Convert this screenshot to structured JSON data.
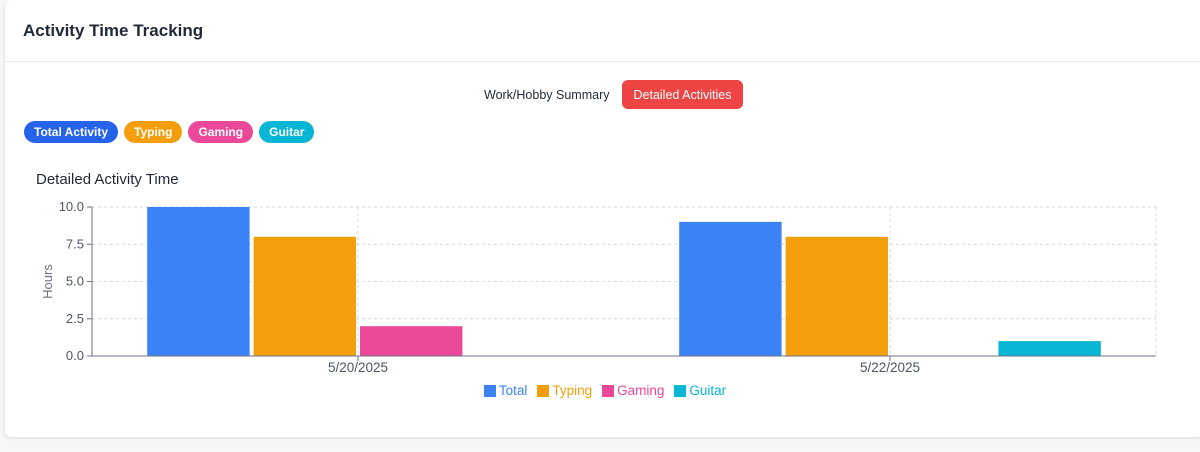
{
  "header": {
    "title": "Activity Time Tracking"
  },
  "toggle": {
    "summary_label": "Work/Hobby Summary",
    "detailed_label": "Detailed Activities"
  },
  "chips": [
    {
      "label": "Total Activity",
      "color": "#2563eb"
    },
    {
      "label": "Typing",
      "color": "#f59e0b"
    },
    {
      "label": "Gaming",
      "color": "#ec4899"
    },
    {
      "label": "Guitar",
      "color": "#06b6d4"
    }
  ],
  "chart_data": {
    "type": "bar",
    "title": "Detailed Activity Time",
    "ylabel": "Hours",
    "xlabel": "",
    "categories": [
      "5/20/2025",
      "5/22/2025"
    ],
    "ylim": [
      0,
      10
    ],
    "yticks": [
      "0.0",
      "2.5",
      "5.0",
      "7.5",
      "10.0"
    ],
    "grid": true,
    "legend_position": "bottom",
    "series": [
      {
        "name": "Total",
        "color": "#3b82f6",
        "values": [
          10,
          9
        ]
      },
      {
        "name": "Typing",
        "color": "#f59e0b",
        "values": [
          8,
          8
        ]
      },
      {
        "name": "Gaming",
        "color": "#ec4899",
        "values": [
          2,
          0
        ]
      },
      {
        "name": "Guitar",
        "color": "#06b6d4",
        "values": [
          0,
          1
        ]
      }
    ]
  }
}
